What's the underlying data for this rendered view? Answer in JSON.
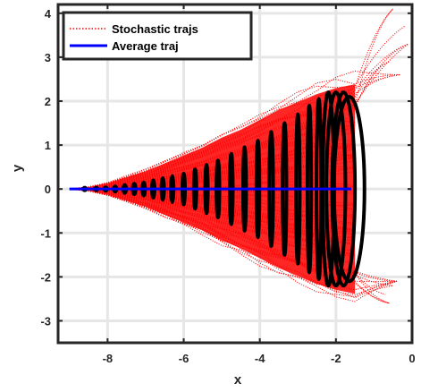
{
  "chart_data": {
    "type": "line",
    "xlabel": "x",
    "ylabel": "y",
    "xlim": [
      -9.3,
      0
    ],
    "ylim": [
      -3.5,
      4.2
    ],
    "xticks": [
      -8,
      -6,
      -4,
      -2,
      0
    ],
    "yticks": [
      -3,
      -2,
      -1,
      0,
      1,
      2,
      3,
      4
    ],
    "xtick_labels": [
      "-8",
      "-6",
      "-4",
      "-2",
      "0"
    ],
    "ytick_labels": [
      "-3",
      "-2",
      "-1",
      "0",
      "1",
      "2",
      "3",
      "4"
    ],
    "grid": true,
    "legend_position": "top-left",
    "series": [
      {
        "name": "Stochastic trajs",
        "color": "#ff0000",
        "style": "dotted",
        "envelope": {
          "x": [
            -9.0,
            -8.5,
            -8.0,
            -7.5,
            -7.0,
            -6.5,
            -6.0,
            -5.5,
            -5.0,
            -4.5,
            -4.0,
            -3.5,
            -3.0,
            -2.5,
            -2.0,
            -1.5
          ],
          "y_upper": [
            0.0,
            0.05,
            0.15,
            0.3,
            0.45,
            0.65,
            0.85,
            1.05,
            1.3,
            1.5,
            1.75,
            2.0,
            2.2,
            2.4,
            2.55,
            2.65
          ],
          "y_lower": [
            0.0,
            -0.05,
            -0.15,
            -0.3,
            -0.45,
            -0.65,
            -0.85,
            -1.05,
            -1.3,
            -1.5,
            -1.75,
            -2.0,
            -2.2,
            -2.4,
            -2.55,
            -2.65
          ]
        },
        "tails_top_end": [
          [
            -0.5,
            4.1
          ],
          [
            -0.2,
            3.7
          ],
          [
            -0.1,
            3.3
          ],
          [
            -0.6,
            2.9
          ],
          [
            -0.3,
            2.6
          ]
        ],
        "tails_bottom_end": [
          [
            -0.6,
            -2.6
          ],
          [
            -0.7,
            -2.4
          ],
          [
            -0.5,
            -2.2
          ],
          [
            -0.4,
            -2.1
          ]
        ]
      },
      {
        "name": "Average traj",
        "color": "#0000ff",
        "style": "solid",
        "x": [
          -9.0,
          -1.6
        ],
        "y": [
          0.0,
          0.0
        ]
      }
    ],
    "ellipses": {
      "color": "#000000",
      "cx": [
        -8.6,
        -8.3,
        -8.05,
        -7.8,
        -7.55,
        -7.3,
        -7.05,
        -6.8,
        -6.55,
        -6.3,
        -6.0,
        -5.7,
        -5.4,
        -5.1,
        -4.75,
        -4.4,
        -4.05,
        -3.7,
        -3.35,
        -3.0,
        -2.7,
        -2.45,
        -2.2,
        -2.0,
        -1.8,
        -1.65
      ],
      "ry": [
        0.01,
        0.02,
        0.04,
        0.06,
        0.09,
        0.12,
        0.15,
        0.2,
        0.25,
        0.3,
        0.35,
        0.45,
        0.55,
        0.65,
        0.8,
        0.95,
        1.1,
        1.3,
        1.5,
        1.7,
        1.9,
        2.05,
        2.2,
        2.2,
        2.2,
        2.1
      ],
      "rx": [
        0.02,
        0.02,
        0.02,
        0.02,
        0.02,
        0.02,
        0.02,
        0.02,
        0.02,
        0.03,
        0.03,
        0.03,
        0.03,
        0.04,
        0.04,
        0.04,
        0.04,
        0.05,
        0.05,
        0.05,
        0.05,
        0.06,
        0.15,
        0.25,
        0.3,
        0.4
      ]
    }
  }
}
